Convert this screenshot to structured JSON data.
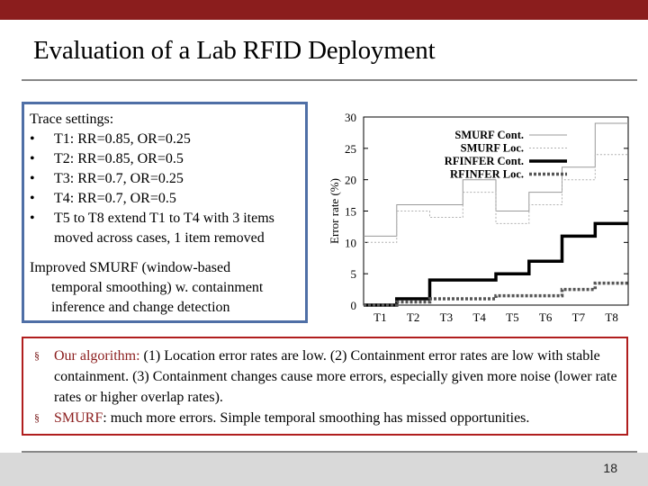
{
  "slide": {
    "title": "Evaluation of a Lab RFID Deployment",
    "page_number": "18",
    "accent_color": "#8b1d1d",
    "box_border_color": "#4f6fa6"
  },
  "settings": {
    "heading": "Trace settings:",
    "bullet": "•",
    "items": [
      "T1: RR=0.85, OR=0.25",
      "T2: RR=0.85, OR=0.5",
      "T3: RR=0.7, OR=0.25",
      "T4: RR=0.7, OR=0.5",
      "T5 to T8 extend T1 to T4 with 3 items"
    ],
    "item5_cont": "moved across cases,  1 item removed",
    "improved_line1": "Improved SMURF (window-based",
    "improved_line2": "temporal smoothing) w. containment",
    "improved_line3": "inference and change detection"
  },
  "bullets": {
    "marker": "§",
    "b1_label": "Our algorithm:",
    "b1_text": " (1) Location error rates are low. (2) Containment error rates are low with stable containment. (3) Containment changes cause more errors, especially given more noise (lower rate rates or higher overlap rates).",
    "b2_label": "SMURF",
    "b2_text": ": much more errors. Simple temporal smoothing has missed opportunities."
  },
  "chart_data": {
    "type": "line",
    "step": true,
    "categories": [
      "T1",
      "T2",
      "T3",
      "T4",
      "T5",
      "T6",
      "T7",
      "T8"
    ],
    "ylabel": "Error rate (%)",
    "xlabel": "",
    "ylim": [
      0,
      30
    ],
    "yticks": [
      0,
      5,
      10,
      15,
      20,
      25,
      30
    ],
    "legend_position": "top-right",
    "grid": false,
    "series": [
      {
        "name": "SMURF Cont.",
        "values": [
          11,
          16,
          16,
          20,
          15,
          18,
          22,
          29
        ],
        "color": "#9a9a9a",
        "style": "solid-thin"
      },
      {
        "name": "SMURF Loc.",
        "values": [
          10,
          15,
          14,
          18,
          13,
          16,
          20,
          24
        ],
        "color": "#b0b0b0",
        "style": "dotted-thin"
      },
      {
        "name": "RFINFER Cont.",
        "values": [
          0,
          1,
          4,
          4,
          5,
          7,
          11,
          13
        ],
        "color": "#000000",
        "style": "solid-thick"
      },
      {
        "name": "RFINFER Loc.",
        "values": [
          0,
          0.5,
          1,
          1,
          1.5,
          1.5,
          2.5,
          3.5
        ],
        "color": "#555555",
        "style": "dashed-thick"
      }
    ]
  }
}
